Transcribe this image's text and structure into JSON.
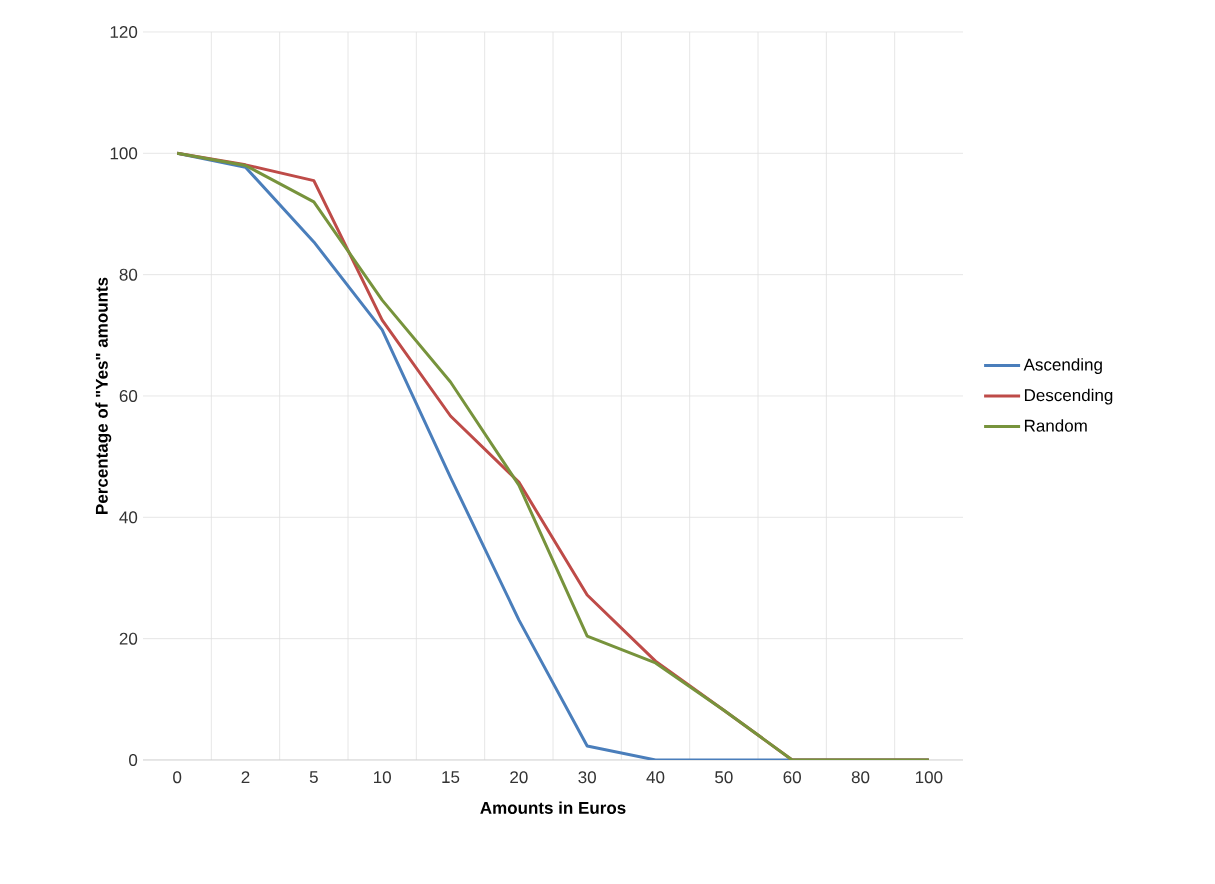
{
  "chart_data": {
    "type": "line",
    "xlabel": "Amounts in Euros",
    "ylabel": "Percentage of \"Yes\" amounts",
    "categories": [
      "0",
      "2",
      "5",
      "10",
      "15",
      "20",
      "30",
      "40",
      "50",
      "60",
      "80",
      "100"
    ],
    "series": [
      {
        "name": "Ascending",
        "color": "#4a7ebb",
        "values": [
          100,
          97.7,
          85.4,
          70.9,
          46.6,
          23.1,
          2.3,
          0,
          0,
          0,
          0,
          0
        ]
      },
      {
        "name": "Descending",
        "color": "#be4b48",
        "values": [
          100,
          98.1,
          95.5,
          72.5,
          56.7,
          45.8,
          27.2,
          16.3,
          8.2,
          0,
          0,
          0
        ]
      },
      {
        "name": "Random",
        "color": "#77933c",
        "values": [
          100,
          98,
          92,
          75.8,
          62.3,
          45.3,
          20.4,
          16,
          8.2,
          0,
          0,
          0
        ]
      }
    ],
    "ylim": [
      0,
      120
    ],
    "yticks": [
      0,
      20,
      40,
      60,
      80,
      100,
      120
    ],
    "grid": true,
    "legend": "right",
    "marker": "none",
    "line_style": "solid"
  }
}
